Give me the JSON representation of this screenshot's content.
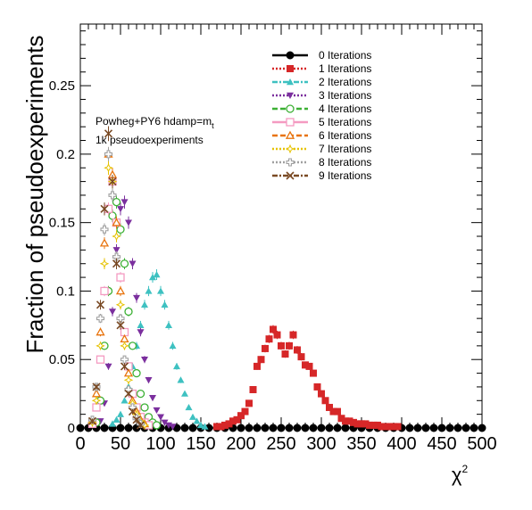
{
  "chart_data": {
    "type": "scatter",
    "ylabel": "Fraction of pseudoexperiments",
    "xlabel": "χ",
    "xlabel_sup": "2",
    "xlim": [
      0,
      500
    ],
    "ylim": [
      0,
      0.295
    ],
    "x_ticks": [
      0,
      50,
      100,
      150,
      200,
      250,
      300,
      350,
      400,
      450,
      500
    ],
    "x_tick_labels": [
      "0",
      "50",
      "100",
      "150",
      "200",
      "250",
      "300",
      "350",
      "400",
      "450",
      "500"
    ],
    "y_ticks": [
      0,
      0.05,
      0.1,
      0.15,
      0.2,
      0.25
    ],
    "y_tick_labels": [
      "0",
      "0.05",
      "0.1",
      "0.15",
      "0.2",
      "0.25"
    ],
    "grid": false,
    "legend_position": "top-right",
    "annotations": [
      {
        "text": "Powheg+PY6 hdamp=m",
        "sub": "t"
      },
      {
        "text": "1k pseudoexperiments",
        "sub": ""
      }
    ],
    "series": [
      {
        "name": "0 Iterations",
        "color": "#000000",
        "marker": "circle-filled",
        "line": "solid",
        "x": [
          0,
          10,
          20,
          30,
          40,
          50,
          60,
          70,
          80,
          90,
          100,
          110,
          120,
          130,
          140,
          150,
          160,
          170,
          180,
          190,
          200,
          210,
          220,
          230,
          240,
          250,
          260,
          270,
          280,
          290,
          300,
          310,
          320,
          330,
          340,
          350,
          360,
          370,
          380,
          390,
          400,
          410,
          420,
          430,
          440,
          450,
          460,
          470,
          480,
          490,
          500
        ],
        "y": [
          0,
          0,
          0,
          0,
          0,
          0,
          0,
          0,
          0,
          0,
          0,
          0,
          0,
          0,
          0,
          0,
          0,
          0,
          0,
          0,
          0,
          0,
          0,
          0,
          0,
          0,
          0,
          0,
          0,
          0,
          0,
          0,
          0,
          0,
          0,
          0,
          0,
          0,
          0,
          0,
          0,
          0,
          0,
          0,
          0,
          0,
          0,
          0,
          0,
          0,
          0
        ]
      },
      {
        "name": "1 Iterations",
        "color": "#d62728",
        "marker": "square-filled",
        "line": "dotted",
        "x": [
          170,
          175,
          180,
          185,
          190,
          195,
          200,
          205,
          210,
          215,
          220,
          225,
          230,
          235,
          240,
          245,
          250,
          255,
          260,
          265,
          270,
          275,
          280,
          285,
          290,
          295,
          300,
          305,
          310,
          315,
          320,
          325,
          330,
          335,
          340,
          345,
          350,
          355,
          360,
          365,
          370,
          375,
          380,
          385,
          390,
          395
        ],
        "y": [
          0.001,
          0.001,
          0.002,
          0.003,
          0.005,
          0.006,
          0.009,
          0.012,
          0.018,
          0.028,
          0.045,
          0.05,
          0.058,
          0.065,
          0.072,
          0.068,
          0.06,
          0.054,
          0.06,
          0.068,
          0.057,
          0.052,
          0.046,
          0.045,
          0.04,
          0.03,
          0.025,
          0.02,
          0.015,
          0.012,
          0.012,
          0.007,
          0.005,
          0.005,
          0.004,
          0.003,
          0.003,
          0.003,
          0.002,
          0.002,
          0.002,
          0.001,
          0.001,
          0.001,
          0.001,
          0.001
        ]
      },
      {
        "name": "2 Iterations",
        "color": "#3ec1c1",
        "marker": "triangle-up-filled",
        "line": "dashdot",
        "x": [
          40,
          45,
          50,
          55,
          60,
          65,
          70,
          75,
          80,
          85,
          90,
          95,
          100,
          105,
          110,
          115,
          120,
          125,
          130,
          135,
          140,
          145,
          150,
          155
        ],
        "y": [
          0.003,
          0.006,
          0.01,
          0.02,
          0.03,
          0.045,
          0.06,
          0.075,
          0.09,
          0.1,
          0.11,
          0.112,
          0.1,
          0.09,
          0.075,
          0.06,
          0.045,
          0.035,
          0.025,
          0.015,
          0.008,
          0.005,
          0.002,
          0.001
        ]
      },
      {
        "name": "3 Iterations",
        "color": "#7b2f9e",
        "marker": "triangle-down-filled",
        "line": "dotted",
        "x": [
          25,
          30,
          35,
          40,
          45,
          50,
          55,
          60,
          65,
          70,
          75,
          80,
          85,
          90,
          95,
          100,
          105,
          110,
          115
        ],
        "y": [
          0.005,
          0.018,
          0.045,
          0.085,
          0.13,
          0.16,
          0.165,
          0.15,
          0.12,
          0.095,
          0.07,
          0.05,
          0.035,
          0.022,
          0.013,
          0.008,
          0.004,
          0.002,
          0.001
        ]
      },
      {
        "name": "4 Iterations",
        "color": "#3cb034",
        "marker": "circle-open",
        "line": "dashed",
        "x": [
          20,
          25,
          30,
          35,
          40,
          45,
          50,
          55,
          60,
          65,
          70,
          75,
          80,
          85,
          90,
          95
        ],
        "y": [
          0.004,
          0.02,
          0.06,
          0.1,
          0.155,
          0.165,
          0.145,
          0.12,
          0.085,
          0.06,
          0.04,
          0.025,
          0.015,
          0.008,
          0.004,
          0.002
        ]
      },
      {
        "name": "5 Iterations",
        "color": "#f49ac1",
        "marker": "square-open",
        "line": "solid",
        "x": [
          15,
          20,
          25,
          30,
          35,
          40,
          45,
          50,
          55,
          60,
          65,
          70,
          75,
          80,
          85
        ],
        "y": [
          0.003,
          0.015,
          0.05,
          0.1,
          0.16,
          0.18,
          0.15,
          0.11,
          0.07,
          0.045,
          0.025,
          0.015,
          0.008,
          0.004,
          0.002
        ]
      },
      {
        "name": "6 Iterations",
        "color": "#e8740e",
        "marker": "triangle-up-open",
        "line": "dashed",
        "x": [
          15,
          20,
          25,
          30,
          35,
          40,
          45,
          50,
          55,
          60,
          65,
          70,
          75,
          80
        ],
        "y": [
          0.005,
          0.025,
          0.07,
          0.135,
          0.2,
          0.185,
          0.15,
          0.1,
          0.065,
          0.04,
          0.02,
          0.012,
          0.006,
          0.003
        ]
      },
      {
        "name": "7 Iterations",
        "color": "#e6c200",
        "marker": "star-open",
        "line": "dotted",
        "x": [
          15,
          20,
          25,
          30,
          35,
          40,
          45,
          50,
          55,
          60,
          65,
          70,
          75,
          80
        ],
        "y": [
          0.004,
          0.02,
          0.06,
          0.12,
          0.19,
          0.18,
          0.14,
          0.09,
          0.06,
          0.035,
          0.018,
          0.01,
          0.005,
          0.002
        ]
      },
      {
        "name": "8 Iterations",
        "color": "#a0a0a0",
        "marker": "cross-open",
        "line": "dotted",
        "x": [
          15,
          20,
          25,
          30,
          35,
          40,
          45,
          50,
          55,
          60,
          65,
          70,
          75
        ],
        "y": [
          0.006,
          0.03,
          0.08,
          0.145,
          0.2,
          0.17,
          0.125,
          0.08,
          0.05,
          0.028,
          0.015,
          0.007,
          0.003
        ]
      },
      {
        "name": "9 Iterations",
        "color": "#7a4a24",
        "marker": "x-mark",
        "line": "dashdot",
        "x": [
          15,
          20,
          25,
          30,
          35,
          40,
          45,
          50,
          55,
          60,
          65,
          70,
          75
        ],
        "y": [
          0.005,
          0.03,
          0.09,
          0.16,
          0.215,
          0.18,
          0.12,
          0.075,
          0.045,
          0.025,
          0.012,
          0.006,
          0.002
        ]
      }
    ]
  }
}
